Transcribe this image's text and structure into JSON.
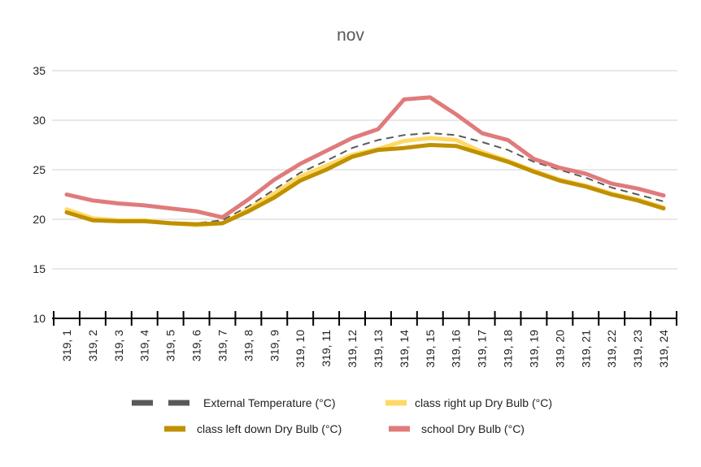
{
  "chart_data": {
    "type": "line",
    "title": "nov",
    "xlabel": "",
    "ylabel": "",
    "ylim": [
      10,
      35
    ],
    "yticks": [
      10,
      15,
      20,
      25,
      30,
      35
    ],
    "grid": true,
    "legend_position": "bottom",
    "categories": [
      "319, 1",
      "319, 2",
      "319, 3",
      "319, 4",
      "319, 5",
      "319, 6",
      "319, 7",
      "319, 8",
      "319, 9",
      "319, 10",
      "319, 11",
      "319, 12",
      "319, 13",
      "319, 14",
      "319, 15",
      "319, 16",
      "319, 17",
      "319, 18",
      "319, 19",
      "319, 20",
      "319, 21",
      "319, 22",
      "319, 23",
      "319, 24"
    ],
    "series": [
      {
        "name": "External Temperature (°C)",
        "color": "#595959",
        "dashed": true,
        "values": [
          20.9,
          20.1,
          19.9,
          19.9,
          19.7,
          19.6,
          19.9,
          21.3,
          23.0,
          24.7,
          25.9,
          27.2,
          28.0,
          28.5,
          28.7,
          28.5,
          27.8,
          27.0,
          25.8,
          25.0,
          24.2,
          23.2,
          22.5,
          21.8
        ]
      },
      {
        "name": "class right up Dry Bulb (°C)",
        "color": "#ffd966",
        "dashed": false,
        "values": [
          21.0,
          20.1,
          19.9,
          19.9,
          19.6,
          19.4,
          19.6,
          21.0,
          22.6,
          24.3,
          25.4,
          26.5,
          27.1,
          27.9,
          28.2,
          28.0,
          26.8,
          25.9,
          24.9,
          24.0,
          23.4,
          22.6,
          22.0,
          21.2
        ]
      },
      {
        "name": "class left down Dry Bulb (°C)",
        "color": "#bf9000",
        "dashed": false,
        "values": [
          20.7,
          19.9,
          19.8,
          19.8,
          19.6,
          19.5,
          19.6,
          20.8,
          22.2,
          23.9,
          25.0,
          26.3,
          27.0,
          27.2,
          27.5,
          27.4,
          26.6,
          25.8,
          24.8,
          23.9,
          23.3,
          22.5,
          21.9,
          21.1
        ]
      },
      {
        "name": "school Dry Bulb (°C)",
        "color": "#e07b7b",
        "dashed": false,
        "values": [
          22.5,
          21.9,
          21.6,
          21.4,
          21.1,
          20.8,
          20.2,
          22.0,
          24.0,
          25.6,
          26.9,
          28.2,
          29.1,
          32.1,
          32.3,
          30.6,
          28.7,
          28.0,
          26.1,
          25.2,
          24.6,
          23.6,
          23.1,
          22.4
        ]
      }
    ],
    "legend_rows": [
      [
        "External Temperature (°C)",
        "class right up Dry Bulb (°C)"
      ],
      [
        "class left down Dry Bulb (°C)",
        "school Dry Bulb (°C)"
      ]
    ],
    "colors": {
      "grid": "#d9d9d9",
      "axis": "#000000",
      "background": "#ffffff"
    }
  }
}
